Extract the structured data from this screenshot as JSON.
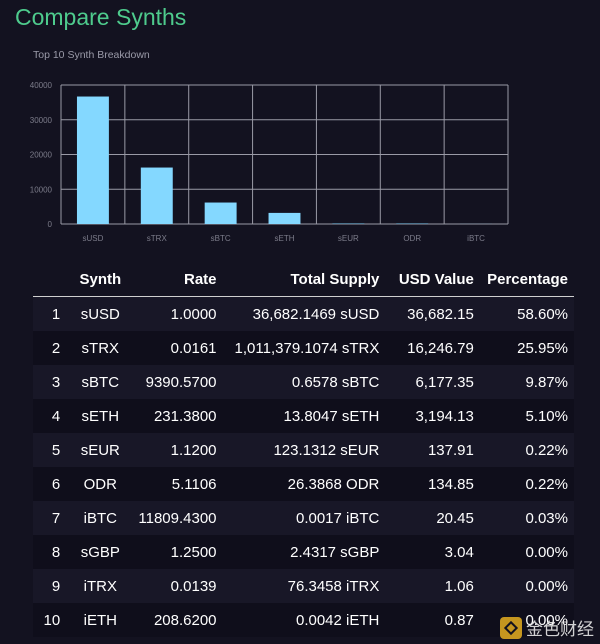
{
  "page": {
    "title": "Compare Synths"
  },
  "chart_data": {
    "type": "bar",
    "title": "Top 10 Synth Breakdown",
    "categories": [
      "sUSD",
      "sTRX",
      "sBTC",
      "sETH",
      "sEUR",
      "ODR",
      "iBTC"
    ],
    "values": [
      36682.15,
      16246.79,
      6177.35,
      3194.13,
      137.91,
      134.85,
      20.45
    ],
    "ylim": [
      0,
      40000
    ],
    "yticks": [
      0,
      10000,
      20000,
      30000,
      40000
    ],
    "xlabel": "",
    "ylabel": "",
    "grid": true,
    "bar_color": "#84d8ff",
    "grid_color": "#9a9aa6"
  },
  "table": {
    "headers": {
      "synth": "Synth",
      "rate": "Rate",
      "supply": "Total Supply",
      "usd": "USD Value",
      "pct": "Percentage"
    },
    "rows": [
      {
        "idx": "1",
        "synth": "sUSD",
        "rate": "1.0000",
        "supply": "36,682.1469 sUSD",
        "usd": "36,682.15",
        "pct": "58.60%"
      },
      {
        "idx": "2",
        "synth": "sTRX",
        "rate": "0.0161",
        "supply": "1,011,379.1074 sTRX",
        "usd": "16,246.79",
        "pct": "25.95%"
      },
      {
        "idx": "3",
        "synth": "sBTC",
        "rate": "9390.5700",
        "supply": "0.6578 sBTC",
        "usd": "6,177.35",
        "pct": "9.87%"
      },
      {
        "idx": "4",
        "synth": "sETH",
        "rate": "231.3800",
        "supply": "13.8047 sETH",
        "usd": "3,194.13",
        "pct": "5.10%"
      },
      {
        "idx": "5",
        "synth": "sEUR",
        "rate": "1.1200",
        "supply": "123.1312 sEUR",
        "usd": "137.91",
        "pct": "0.22%"
      },
      {
        "idx": "6",
        "synth": "ODR",
        "rate": "5.1106",
        "supply": "26.3868 ODR",
        "usd": "134.85",
        "pct": "0.22%"
      },
      {
        "idx": "7",
        "synth": "iBTC",
        "rate": "11809.4300",
        "supply": "0.0017 iBTC",
        "usd": "20.45",
        "pct": "0.03%"
      },
      {
        "idx": "8",
        "synth": "sGBP",
        "rate": "1.2500",
        "supply": "2.4317 sGBP",
        "usd": "3.04",
        "pct": "0.00%"
      },
      {
        "idx": "9",
        "synth": "iTRX",
        "rate": "0.0139",
        "supply": "76.3458 iTRX",
        "usd": "1.06",
        "pct": "0.00%"
      },
      {
        "idx": "10",
        "synth": "iETH",
        "rate": "208.6200",
        "supply": "0.0042 iETH",
        "usd": "0.87",
        "pct": "0.00%"
      }
    ]
  },
  "watermark": {
    "text": "金色财经"
  }
}
